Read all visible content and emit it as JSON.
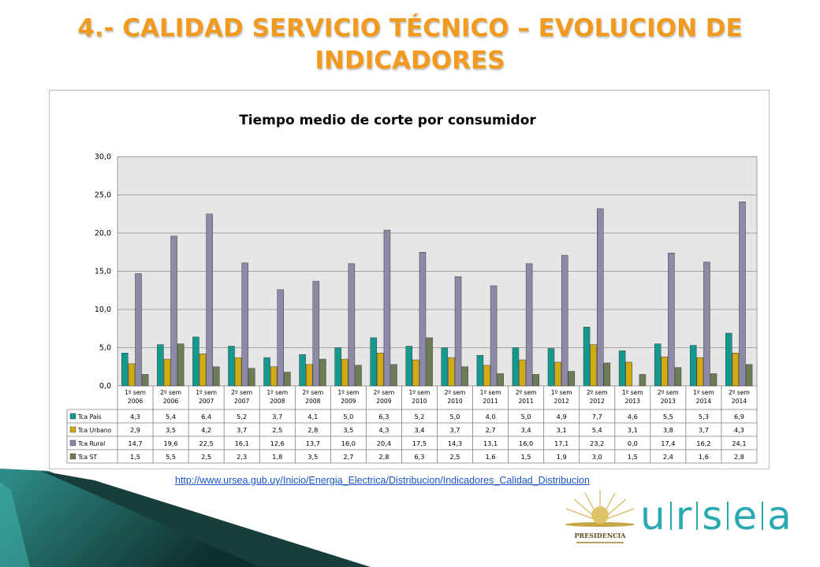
{
  "slide": {
    "title": "4.- CALIDAD SERVICIO TÉCNICO – EVOLUCION DE INDICADORES",
    "source_url": "http://www.ursea.gub.uy/Inicio/Energia_Electrica/Distribucion/Indicadores_Calidad_Distribucion",
    "crest_text": "PRESIDENCIA",
    "logo_letters": [
      "u",
      "r",
      "s",
      "e",
      "a"
    ]
  },
  "colors": {
    "title": "#f29a1e",
    "pais": "#14998f",
    "urbano": "#d1ab11",
    "rural": "#8f89a8",
    "st": "#6c7d55",
    "plot_bg": "#e6e6e6",
    "logo": "#2aa9b3",
    "deco_dark": "#1f5f5b"
  },
  "chart_data": {
    "type": "bar",
    "title": "Tiempo medio de corte por consumidor",
    "xlabel": "",
    "ylabel": "",
    "ylim": [
      0,
      30
    ],
    "yticks": [
      "0,0",
      "5,0",
      "10,0",
      "15,0",
      "20,0",
      "25,0",
      "30,0"
    ],
    "grid": true,
    "legend": "data-table",
    "categories": [
      [
        "1º sem",
        "2006"
      ],
      [
        "2º sem",
        "2006"
      ],
      [
        "1º sem",
        "2007"
      ],
      [
        "2º sem",
        "2007"
      ],
      [
        "1º sem",
        "2008"
      ],
      [
        "2º sem",
        "2008"
      ],
      [
        "1º sem",
        "2009"
      ],
      [
        "2º sem",
        "2009"
      ],
      [
        "1º sem",
        "2010"
      ],
      [
        "2º sem",
        "2010"
      ],
      [
        "1º sem",
        "2011"
      ],
      [
        "2º sem",
        "2011"
      ],
      [
        "1º sem",
        "2012"
      ],
      [
        "2º sem",
        "2012"
      ],
      [
        "1º sem",
        "2013"
      ],
      [
        "2º sem",
        "2013"
      ],
      [
        "1º sem",
        "2014"
      ],
      [
        "2º sem",
        "2014"
      ]
    ],
    "series": [
      {
        "name": "Tca País",
        "color": "#14998f",
        "values": [
          4.3,
          5.4,
          6.4,
          5.2,
          3.7,
          4.1,
          5.0,
          6.3,
          5.2,
          5.0,
          4.0,
          5.0,
          4.9,
          7.7,
          4.6,
          5.5,
          5.3,
          6.9
        ],
        "labels": [
          "4,3",
          "5,4",
          "6,4",
          "5,2",
          "3,7",
          "4,1",
          "5,0",
          "6,3",
          "5,2",
          "5,0",
          "4,0",
          "5,0",
          "4,9",
          "7,7",
          "4,6",
          "5,5",
          "5,3",
          "6,9"
        ]
      },
      {
        "name": "Tca Urbano",
        "color": "#d1ab11",
        "values": [
          2.9,
          3.5,
          4.2,
          3.7,
          2.5,
          2.8,
          3.5,
          4.3,
          3.4,
          3.7,
          2.7,
          3.4,
          3.1,
          5.4,
          3.1,
          3.8,
          3.7,
          4.3
        ],
        "labels": [
          "2,9",
          "3,5",
          "4,2",
          "3,7",
          "2,5",
          "2,8",
          "3,5",
          "4,3",
          "3,4",
          "3,7",
          "2,7",
          "3,4",
          "3,1",
          "5,4",
          "3,1",
          "3,8",
          "3,7",
          "4,3"
        ]
      },
      {
        "name": "Tca Rural",
        "color": "#8f89a8",
        "values": [
          14.7,
          19.6,
          22.5,
          16.1,
          12.6,
          13.7,
          16.0,
          20.4,
          17.5,
          14.3,
          13.1,
          16.0,
          17.1,
          23.2,
          0.0,
          17.4,
          16.2,
          24.1
        ],
        "labels": [
          "14,7",
          "19,6",
          "22,5",
          "16,1",
          "12,6",
          "13,7",
          "16,0",
          "20,4",
          "17,5",
          "14,3",
          "13,1",
          "16,0",
          "17,1",
          "23,2",
          "0,0",
          "17,4",
          "16,2",
          "24,1"
        ]
      },
      {
        "name": "Tca ST",
        "color": "#6c7d55",
        "values": [
          1.5,
          5.5,
          2.5,
          2.3,
          1.8,
          3.5,
          2.7,
          2.8,
          6.3,
          2.5,
          1.6,
          1.5,
          1.9,
          3.0,
          1.5,
          2.4,
          1.6,
          2.8
        ],
        "labels": [
          "1,5",
          "5,5",
          "2,5",
          "2,3",
          "1,8",
          "3,5",
          "2,7",
          "2,8",
          "6,3",
          "2,5",
          "1,6",
          "1,5",
          "1,9",
          "3,0",
          "1,5",
          "2,4",
          "1,6",
          "2,8"
        ]
      }
    ]
  }
}
